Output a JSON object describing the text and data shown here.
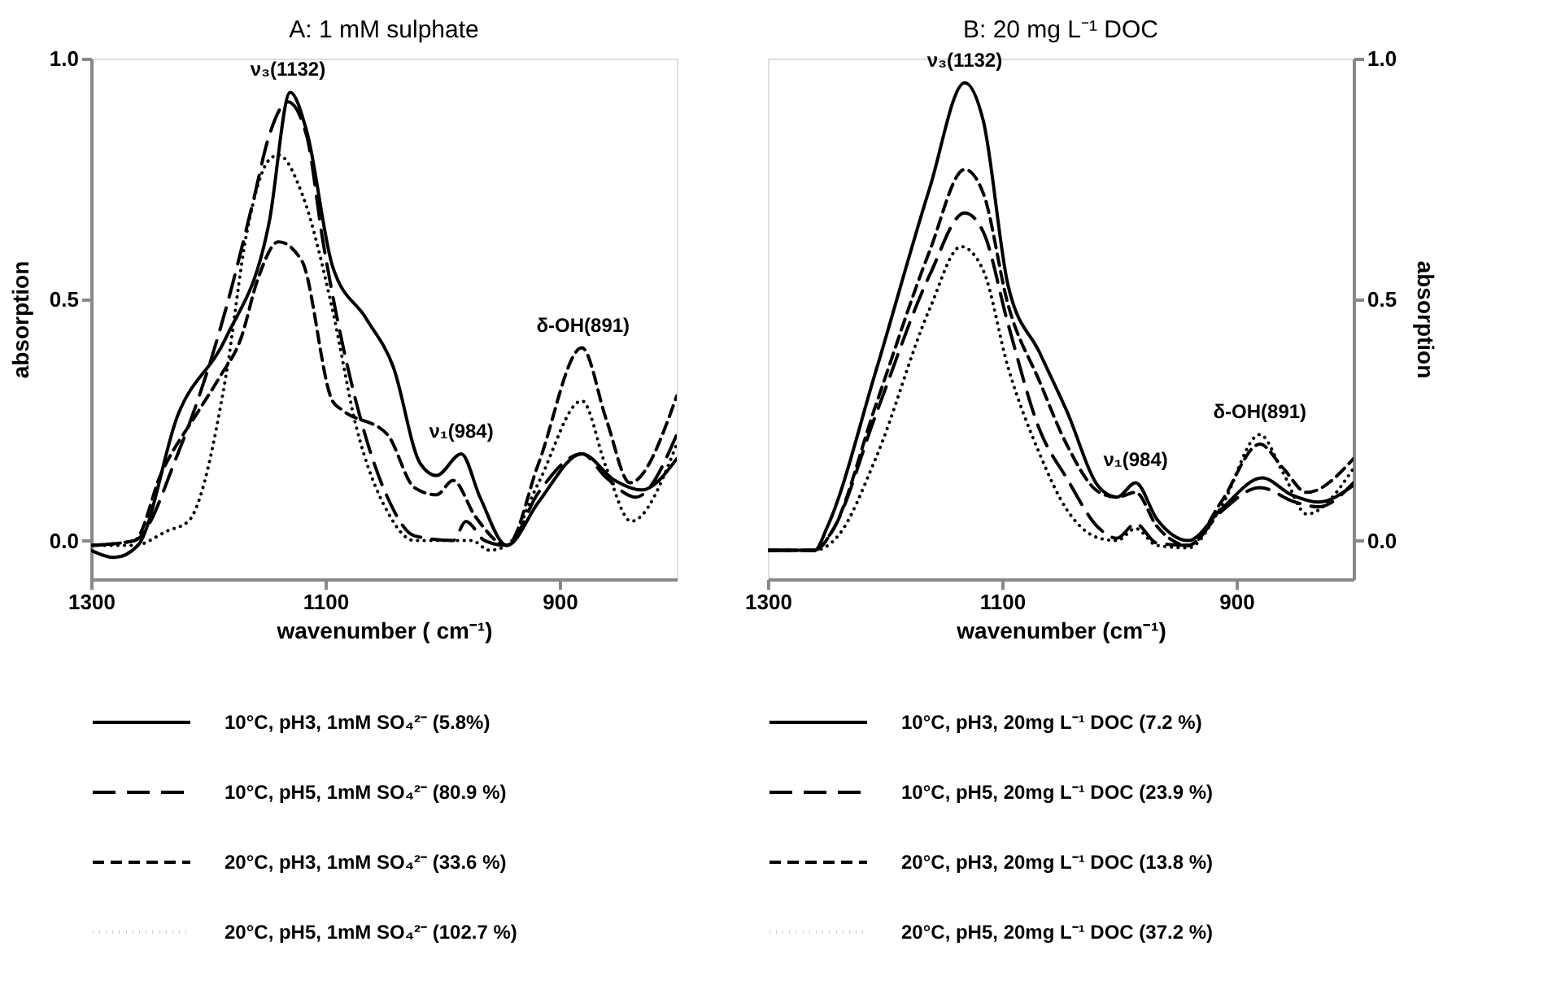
{
  "chart_data": [
    {
      "type": "line",
      "title": "A: 1 mM sulphate",
      "xlabel": "wavenumber ( cm⁻¹)",
      "ylabel": "absorption",
      "xlim": [
        1300,
        800
      ],
      "xticks": [
        1300,
        1100,
        900
      ],
      "ylim": [
        -0.08,
        1.0
      ],
      "yticks": [
        {
          "value": 0,
          "label": "0.0"
        },
        {
          "value": 0.5,
          "label": "0.5"
        },
        {
          "value": 1,
          "label": "1.0"
        }
      ],
      "grid": false,
      "legend": "bottom",
      "marker": "none",
      "annotations": [
        {
          "text": "ν₃(1132)",
          "x": 1132,
          "y": 0.93
        },
        {
          "text": "ν₁(984)",
          "x": 984,
          "y": 0.18
        },
        {
          "text": "δ-OH(891)",
          "x": 880,
          "y": 0.4
        }
      ],
      "series": [
        {
          "name": "10°C, pH3, 1mM SO₄²⁻ (5.8%)",
          "color": "#000000",
          "line_style": "solid",
          "x": [
            1300,
            1280,
            1260,
            1226,
            1185,
            1148,
            1130,
            1116,
            1094,
            1065,
            1042,
            1019,
            1005,
            984,
            968,
            945,
            918,
            881,
            853,
            830,
            800
          ],
          "values": [
            -0.02,
            -0.035,
            -0.01,
            0.26,
            0.42,
            0.66,
            0.93,
            0.85,
            0.57,
            0.46,
            0.36,
            0.16,
            0.135,
            0.18,
            0.09,
            -0.01,
            0.08,
            0.18,
            0.125,
            0.105,
            0.17
          ]
        },
        {
          "name": "10°C, pH5, 1mM SO₄²⁻ (80.9 %)",
          "color": "#000000",
          "line_style": "dashed",
          "x": [
            1300,
            1263,
            1226,
            1185,
            1162,
            1148,
            1132,
            1116,
            1102,
            1074,
            1047,
            1024,
            991,
            980,
            964,
            945,
            918,
            881,
            860,
            835,
            800
          ],
          "values": [
            -0.01,
            0,
            0.18,
            0.48,
            0.7,
            0.84,
            0.91,
            0.84,
            0.62,
            0.29,
            0.09,
            0.01,
            0,
            0.04,
            0,
            -0.01,
            0.1,
            0.18,
            0.13,
            0.09,
            0.22
          ]
        },
        {
          "name": "20°C, pH3, 1mM SO₄²⁻ (33.6 %)",
          "color": "#000000",
          "line_style": "dashed",
          "x": [
            1300,
            1263,
            1240,
            1208,
            1190,
            1172,
            1158,
            1140,
            1120,
            1094,
            1085,
            1047,
            1024,
            1005,
            991,
            972,
            945,
            918,
            881,
            860,
            840,
            800
          ],
          "values": [
            -0.01,
            0,
            0.14,
            0.27,
            0.34,
            0.42,
            0.54,
            0.62,
            0.58,
            0.29,
            0.27,
            0.22,
            0.11,
            0.095,
            0.125,
            0.05,
            -0.01,
            0.16,
            0.4,
            0.25,
            0.12,
            0.3
          ]
        },
        {
          "name": "20°C, pH5, 1mM SO₄²⁻ (102.7 %)",
          "color": "#000000",
          "line_style": "dotted",
          "x": [
            1300,
            1263,
            1235,
            1217,
            1185,
            1167,
            1148,
            1140,
            1120,
            1094,
            1074,
            1047,
            1024,
            1000,
            985,
            975,
            960,
            945,
            918,
            881,
            860,
            839,
            800
          ],
          "values": [
            -0.01,
            -0.01,
            0.02,
            0.04,
            0.34,
            0.64,
            0.79,
            0.8,
            0.72,
            0.48,
            0.24,
            0.06,
            0,
            0,
            0,
            0,
            -0.02,
            -0.01,
            0.12,
            0.29,
            0.15,
            0.04,
            0.2
          ]
        }
      ]
    },
    {
      "type": "line",
      "title": "B: 20 mg L⁻¹ DOC",
      "xlabel": "wavenumber (cm⁻¹)",
      "ylabel": "absorption",
      "xlim": [
        1300,
        800
      ],
      "xticks": [
        1300,
        1100,
        900
      ],
      "ylim": [
        -0.08,
        1.0
      ],
      "yticks": [
        {
          "value": 0,
          "label": "0.0"
        },
        {
          "value": 0.5,
          "label": "0.5"
        },
        {
          "value": 1,
          "label": "1.0"
        }
      ],
      "grid": false,
      "legend": "bottom",
      "marker": "none",
      "annotations": [
        {
          "text": "ν₃(1132)",
          "x": 1132,
          "y": 0.95
        },
        {
          "text": "ν₁(984)",
          "x": 986,
          "y": 0.12
        },
        {
          "text": "δ-OH(891)",
          "x": 880,
          "y": 0.22
        }
      ],
      "series": [
        {
          "name": "10°C, pH3, 20mg L⁻¹ DOC (7.2 %)",
          "color": "#000000",
          "line_style": "solid",
          "x": [
            1300,
            1260,
            1249,
            1208,
            1162,
            1132,
            1116,
            1095,
            1068,
            1045,
            1017,
            1002,
            986,
            968,
            941,
            913,
            878,
            853,
            830,
            800
          ],
          "values": [
            -0.02,
            -0.02,
            0.03,
            0.35,
            0.73,
            0.95,
            0.87,
            0.53,
            0.39,
            0.27,
            0.11,
            0.09,
            0.12,
            0.045,
            0,
            0.065,
            0.13,
            0.095,
            0.08,
            0.115
          ]
        },
        {
          "name": "10°C, pH5, 20mg L⁻¹ DOC (23.9 %)",
          "color": "#000000",
          "line_style": "dashed",
          "x": [
            1300,
            1260,
            1245,
            1208,
            1162,
            1132,
            1116,
            1095,
            1068,
            1045,
            1017,
            1002,
            986,
            968,
            941,
            913,
            880,
            850,
            830,
            800
          ],
          "values": [
            -0.02,
            -0.02,
            0.02,
            0.26,
            0.55,
            0.68,
            0.64,
            0.45,
            0.23,
            0.13,
            0.025,
            0.005,
            0.035,
            -0.005,
            -0.01,
            0.06,
            0.11,
            0.08,
            0.07,
            0.12
          ]
        },
        {
          "name": "20°C, pH3, 20mg L⁻¹ DOC (13.8 %)",
          "color": "#000000",
          "line_style": "dashed",
          "x": [
            1300,
            1260,
            1245,
            1208,
            1162,
            1132,
            1116,
            1095,
            1068,
            1045,
            1017,
            1002,
            986,
            968,
            941,
            913,
            880,
            860,
            840,
            800
          ],
          "values": [
            -0.02,
            -0.02,
            0.02,
            0.28,
            0.6,
            0.77,
            0.72,
            0.49,
            0.33,
            0.2,
            0.1,
            0.09,
            0.1,
            0.03,
            -0.01,
            0.08,
            0.2,
            0.15,
            0.1,
            0.17
          ]
        },
        {
          "name": "20°C, pH5, 20mg L⁻¹ DOC (37.2 %)",
          "color": "#000000",
          "line_style": "dotted",
          "x": [
            1300,
            1260,
            1240,
            1208,
            1162,
            1135,
            1116,
            1095,
            1068,
            1045,
            1017,
            1002,
            986,
            968,
            941,
            913,
            880,
            860,
            840,
            800
          ],
          "values": [
            -0.02,
            -0.02,
            0.01,
            0.17,
            0.48,
            0.61,
            0.56,
            0.36,
            0.18,
            0.065,
            0.005,
            0,
            0.025,
            -0.01,
            -0.015,
            0.07,
            0.22,
            0.14,
            0.055,
            0.15
          ]
        }
      ]
    }
  ]
}
